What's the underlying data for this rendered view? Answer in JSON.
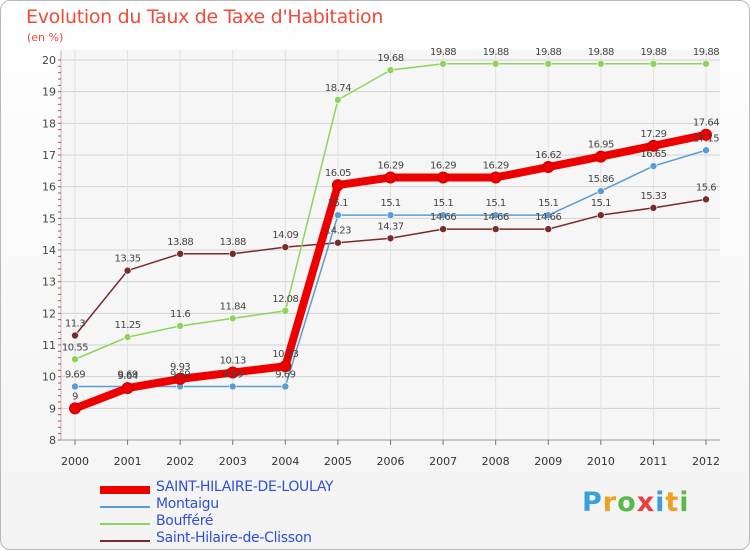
{
  "chart_data": {
    "type": "line",
    "title": "Evolution du Taux de Taxe d'Habitation",
    "subtitle": "(en %)",
    "x": [
      "2000",
      "2001",
      "2002",
      "2003",
      "2004",
      "2005",
      "2006",
      "2007",
      "2008",
      "2009",
      "2010",
      "2011",
      "2012"
    ],
    "ylim": [
      8,
      20
    ],
    "yticks": [
      "8",
      "9",
      "10",
      "11",
      "12",
      "13",
      "14",
      "15",
      "16",
      "17",
      "18",
      "19",
      "20"
    ],
    "grid": true,
    "legend_position": "bottom-left",
    "series": [
      {
        "name": "SAINT-HILAIRE-DE-LOULAY",
        "color": "#ee0000",
        "values": [
          9,
          9.64,
          9.93,
          10.13,
          10.33,
          16.05,
          16.29,
          16.29,
          16.29,
          16.62,
          16.95,
          17.29,
          17.64
        ],
        "labels": [
          "9",
          "9.64",
          "9.93",
          "10.13",
          "10.33",
          "16.05",
          "16.29",
          "16.29",
          "16.29",
          "16.62",
          "16.95",
          "17.29",
          "17.64"
        ]
      },
      {
        "name": "Montaigu",
        "color": "#5b9bd5",
        "values": [
          9.69,
          9.69,
          9.69,
          9.69,
          9.69,
          15.1,
          15.1,
          15.1,
          15.1,
          15.1,
          15.86,
          16.65,
          17.15
        ],
        "labels": [
          "9.69",
          "9.69",
          "9.69",
          "9.69",
          "9.69",
          "15.1",
          "15.1",
          "15.1",
          "15.1",
          "15.1",
          "15.86",
          "16.65",
          "17.15"
        ]
      },
      {
        "name": "Boufféré",
        "color": "#8ed45b",
        "values": [
          10.55,
          11.25,
          11.6,
          11.84,
          12.08,
          18.74,
          19.68,
          19.88,
          19.88,
          19.88,
          19.88,
          19.88,
          19.88
        ],
        "labels": [
          "10.55",
          "11.25",
          "11.6",
          "11.84",
          "12.08",
          "18.74",
          "19.68",
          "19.88",
          "19.88",
          "19.88",
          "19.88",
          "19.88",
          "19.88"
        ]
      },
      {
        "name": "Saint-Hilaire-de-Clisson",
        "color": "#7a2a2a",
        "values": [
          11.3,
          13.35,
          13.88,
          13.88,
          14.09,
          14.23,
          14.37,
          14.66,
          14.66,
          14.66,
          15.1,
          15.33,
          15.6
        ],
        "labels": [
          "11.3",
          "13.35",
          "13.88",
          "13.88",
          "14.09",
          "14.23",
          "14.37",
          "14.66",
          "14.66",
          "14.66",
          "15.1",
          "15.33",
          "15.6"
        ]
      }
    ]
  },
  "logo": {
    "letters": [
      "P",
      "r",
      "o",
      "x",
      "i",
      "t",
      "i"
    ],
    "colors": [
      "#3aa0dc",
      "#f0a020",
      "#5bb84a",
      "#e84040",
      "#3aa0dc",
      "#f0a020",
      "#5bb84a"
    ]
  }
}
